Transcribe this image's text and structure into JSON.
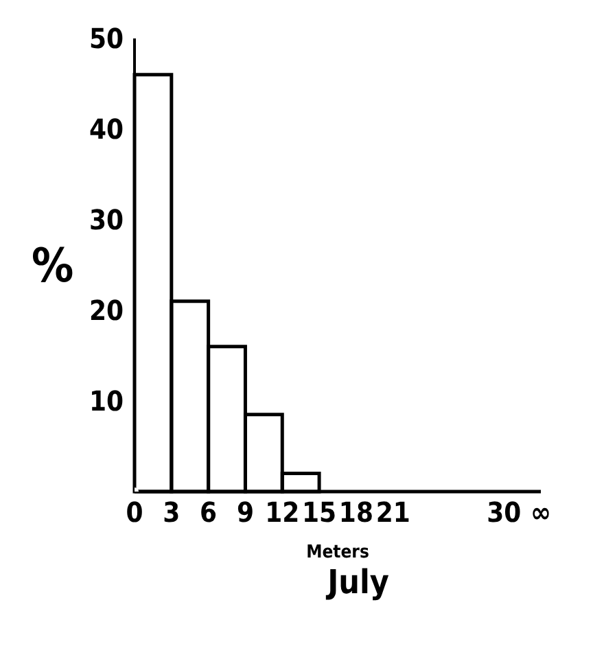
{
  "chart_data": {
    "type": "histogram",
    "title": "July",
    "xlabel": "Meters",
    "ylabel": "%",
    "bins": [
      0,
      3,
      6,
      9,
      12,
      15
    ],
    "values": [
      46,
      21,
      16,
      8.5,
      2
    ],
    "color": "#000000",
    "xlim": [
      0,
      33
    ],
    "xticks": [
      0,
      3,
      6,
      9,
      12,
      15,
      18,
      21,
      30,
      {
        "value": 33,
        "label": "∞"
      }
    ],
    "ylim": [
      0,
      50
    ],
    "yticks": [
      10,
      20,
      30,
      40,
      50
    ],
    "grid": false
  }
}
